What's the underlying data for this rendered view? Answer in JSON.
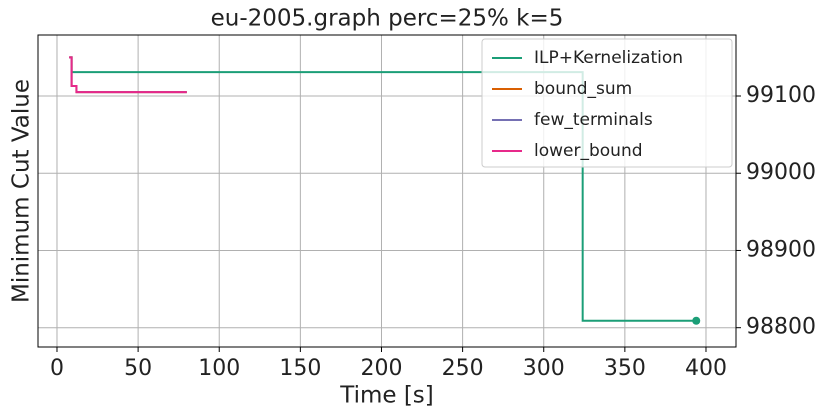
{
  "chart_data": {
    "type": "line",
    "step": "post",
    "title": "eu-2005.graph perc=25% k=5",
    "xlabel": "Time [s]",
    "ylabel": "Minimum Cut Value",
    "xlim": [
      -11.7,
      418.5
    ],
    "ylim": [
      98775,
      99179
    ],
    "xticks": [
      0,
      50,
      100,
      150,
      200,
      250,
      300,
      350,
      400
    ],
    "yticks": [
      98800,
      98900,
      99000,
      99100
    ],
    "y_axis_side": "right",
    "grid": true,
    "legend": "upper right",
    "series": [
      {
        "name": "ILP+Kernelization",
        "color": "#1b9e77",
        "x": [
          8,
          9,
          324,
          394
        ],
        "values": [
          99150,
          99131,
          98809,
          98809
        ],
        "end_marker": true
      },
      {
        "name": "bound_sum",
        "color": "#d95f02",
        "x": [
          7.5,
          9,
          12,
          80
        ],
        "values": [
          99150,
          99113,
          99105,
          99105
        ]
      },
      {
        "name": "few_terminals",
        "color": "#7570b3",
        "x": [
          7.5,
          9,
          12,
          80
        ],
        "values": [
          99150,
          99113,
          99105,
          99105
        ]
      },
      {
        "name": "lower_bound",
        "color": "#e7298a",
        "x": [
          7.5,
          9,
          12,
          80
        ],
        "values": [
          99150,
          99113,
          99105,
          99105
        ]
      }
    ]
  }
}
